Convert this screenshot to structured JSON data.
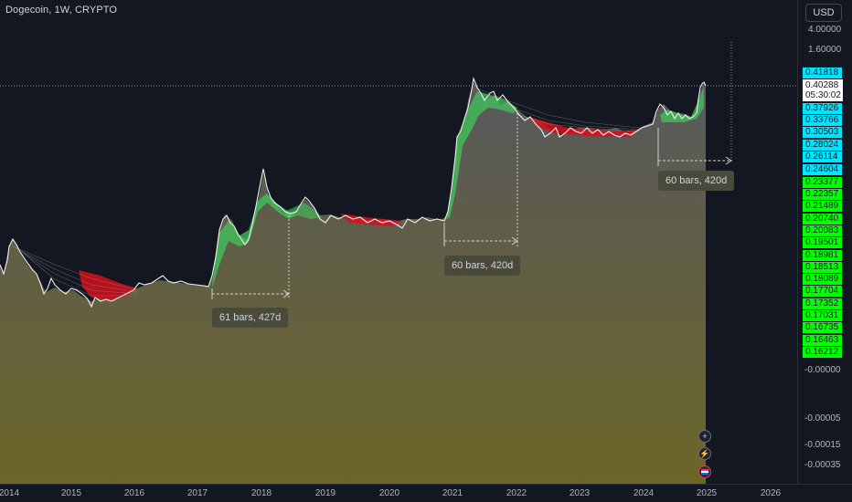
{
  "title": "Dogecoin, 1W, CRYPTO",
  "currency": "USD",
  "colors": {
    "background": "#131722",
    "up": "#00ff00",
    "down": "#f23645",
    "tag_cyan": "#00e5ff",
    "tag_green": "#00ff00",
    "area_top": "#5b5d5f",
    "area_bottom": "#6b6628"
  },
  "price_axis": {
    "labels": [
      "4.00000",
      "1.60000",
      "-0.00000",
      "-0.00005",
      "-0.00015",
      "-0.00035"
    ],
    "current_price": "0.40288",
    "countdown": "05:30:02",
    "cyan_tags": [
      "0.41818",
      "0.37926",
      "0.33766",
      "0.30503",
      "0.28024",
      "0.26114",
      "0.24604"
    ],
    "green_tags": [
      "0.23377",
      "0.22357",
      "0.21489",
      "0.20740",
      "0.20083",
      "0.19501",
      "0.18981",
      "0.18513",
      "0.18089",
      "0.17704",
      "0.17352",
      "0.17031",
      "0.16735",
      "0.16463",
      "0.16212"
    ]
  },
  "time_axis": {
    "labels": [
      "2014",
      "2015",
      "2016",
      "2017",
      "2018",
      "2019",
      "2020",
      "2021",
      "2022",
      "2023",
      "2024",
      "2025",
      "2026"
    ]
  },
  "measurements": [
    {
      "label": "61 bars, 427d"
    },
    {
      "label": "60 bars, 420d"
    },
    {
      "label": "60 bars, 420d"
    }
  ],
  "controls": {
    "add_icon": "+",
    "alert_icon": "⚡",
    "flag_icon": "flag"
  }
}
